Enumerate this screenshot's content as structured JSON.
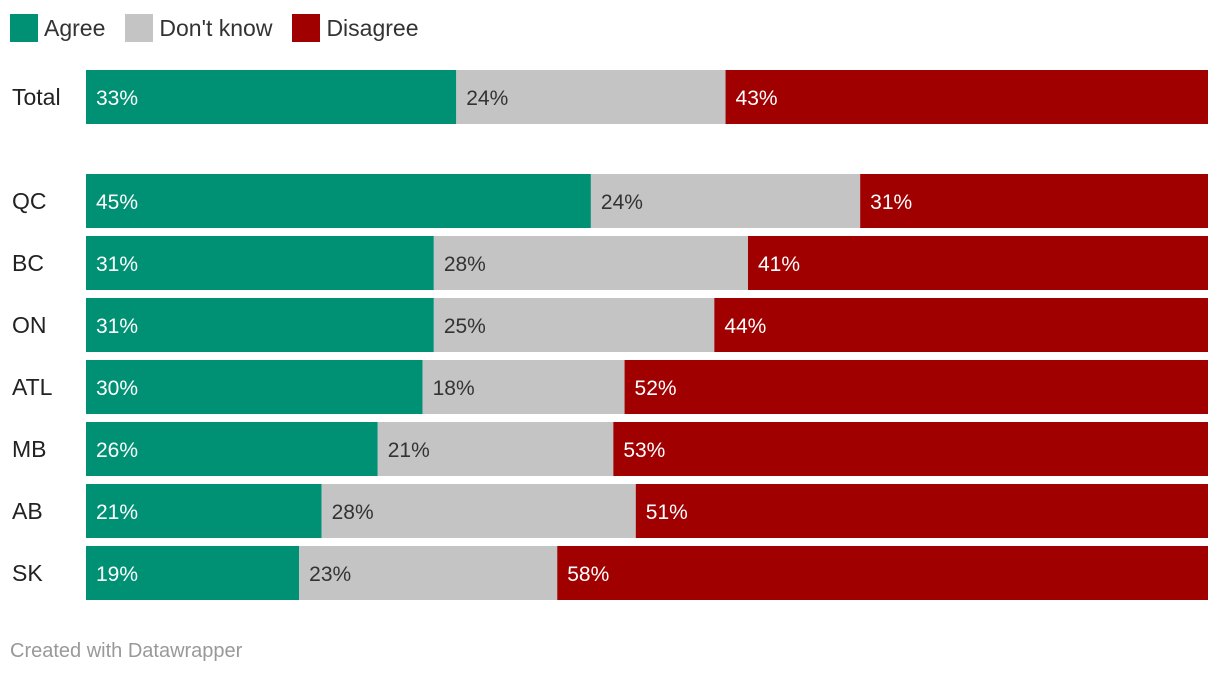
{
  "legend": [
    {
      "label": "Agree",
      "color": "#009175"
    },
    {
      "label": "Don't know",
      "color": "#c4c4c4"
    },
    {
      "label": "Disagree",
      "color": "#a00000"
    }
  ],
  "footer": "Created with Datawrapper",
  "chart_data": {
    "type": "bar",
    "orientation": "horizontal",
    "stacked": true,
    "legend_position": "top-left",
    "categories": [
      "Total",
      "QC",
      "BC",
      "ON",
      "ATL",
      "MB",
      "AB",
      "SK"
    ],
    "series": [
      {
        "name": "Agree",
        "color": "#009175",
        "label_color": "#ffffff",
        "values": [
          33,
          45,
          31,
          31,
          30,
          26,
          21,
          19
        ]
      },
      {
        "name": "Don't know",
        "color": "#c4c4c4",
        "label_color": "#333333",
        "values": [
          24,
          24,
          28,
          25,
          18,
          21,
          28,
          23
        ]
      },
      {
        "name": "Disagree",
        "color": "#a00000",
        "label_color": "#ffffff",
        "values": [
          43,
          31,
          41,
          44,
          52,
          53,
          51,
          58
        ]
      }
    ],
    "value_suffix": "%",
    "xlim": [
      0,
      100
    ]
  }
}
